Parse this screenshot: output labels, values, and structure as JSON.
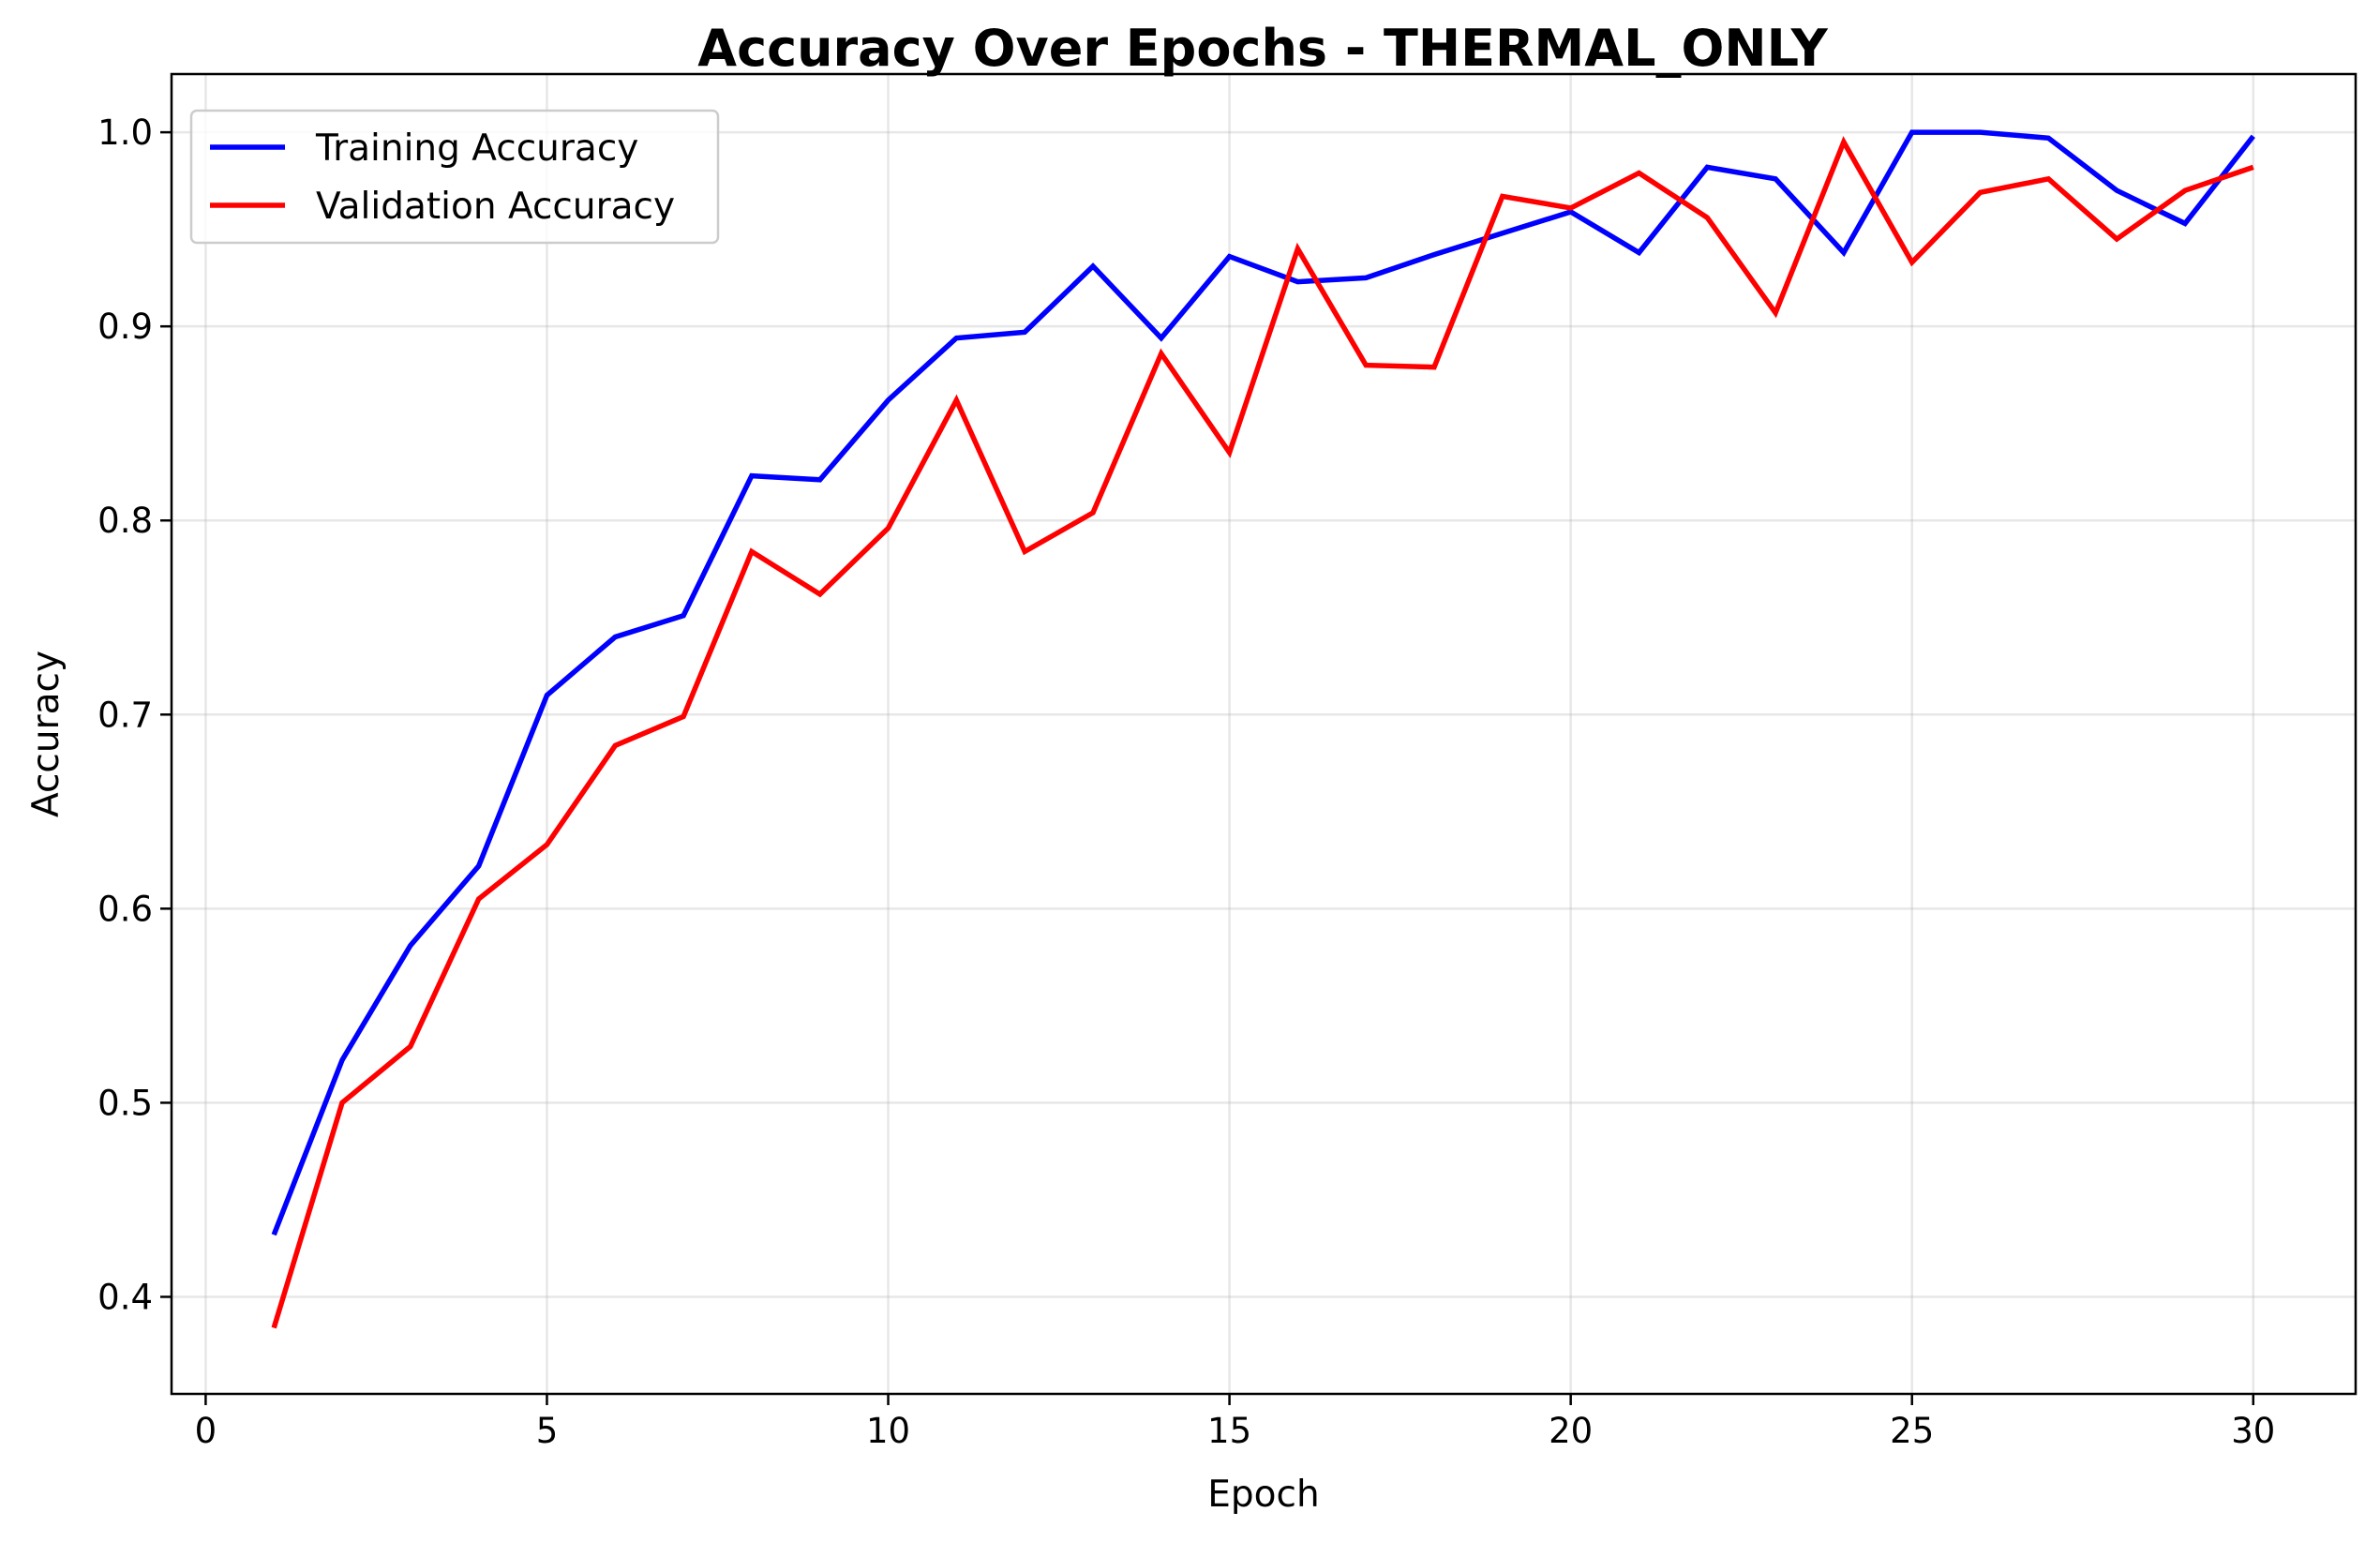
{
  "chart_data": {
    "type": "line",
    "title": "Accuracy Over Epochs - THERMAL_ONLY",
    "xlabel": "Epoch",
    "ylabel": "Accuracy",
    "xlim": [
      -0.5,
      31.5
    ],
    "ylim": [
      0.35,
      1.03
    ],
    "x_ticks": [
      0,
      5,
      10,
      15,
      20,
      25,
      30
    ],
    "x_tick_labels": [
      "0",
      "5",
      "10",
      "15",
      "20",
      "25",
      "30"
    ],
    "y_ticks": [
      0.4,
      0.5,
      0.6,
      0.7,
      0.8,
      0.9,
      1.0
    ],
    "y_tick_labels": [
      "0.4",
      "0.5",
      "0.6",
      "0.7",
      "0.8",
      "0.9",
      "1.0"
    ],
    "grid": true,
    "legend_position": "upper-left",
    "x": [
      1,
      2,
      3,
      4,
      5,
      6,
      7,
      8,
      9,
      10,
      11,
      12,
      13,
      14,
      15,
      16,
      17,
      18,
      19,
      20,
      21,
      22,
      23,
      24,
      25,
      26,
      27,
      28,
      29,
      30
    ],
    "series": [
      {
        "name": "Training Accuracy",
        "color": "#0000ff",
        "values": [
          0.432,
          0.522,
          0.581,
          0.622,
          0.71,
          0.74,
          0.751,
          0.823,
          0.821,
          0.862,
          0.894,
          0.897,
          0.931,
          0.894,
          0.936,
          0.923,
          0.925,
          0.937,
          0.948,
          0.959,
          0.938,
          0.982,
          0.976,
          0.938,
          1.0,
          1.0,
          0.997,
          0.97,
          0.953,
          0.998
        ]
      },
      {
        "name": "Validation Accuracy",
        "color": "#ff0000",
        "values": [
          0.384,
          0.5,
          0.529,
          0.605,
          0.633,
          0.684,
          0.699,
          0.784,
          0.762,
          0.796,
          0.862,
          0.784,
          0.804,
          0.886,
          0.835,
          0.94,
          0.88,
          0.879,
          0.967,
          0.961,
          0.979,
          0.956,
          0.907,
          0.995,
          0.933,
          0.969,
          0.976,
          0.945,
          0.97,
          0.982
        ]
      }
    ]
  }
}
